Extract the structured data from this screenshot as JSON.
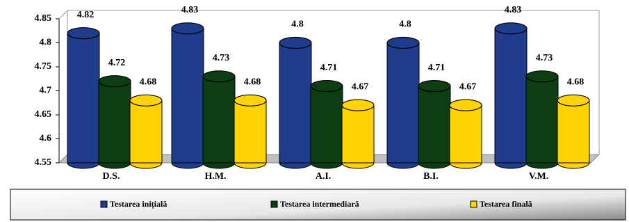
{
  "chart_data": {
    "type": "bar",
    "categories": [
      "D.S.",
      "H.M.",
      "A.I.",
      "B.I.",
      "V.M."
    ],
    "series": [
      {
        "name": "Testarea inițială",
        "color": "#1f3d8c",
        "values": [
          4.82,
          4.83,
          4.8,
          4.8,
          4.83
        ]
      },
      {
        "name": "Testarea intermediară",
        "color": "#0d3d12",
        "values": [
          4.72,
          4.73,
          4.71,
          4.71,
          4.73
        ]
      },
      {
        "name": "Testarea finală",
        "color": "#ffd400",
        "values": [
          4.68,
          4.68,
          4.67,
          4.67,
          4.68
        ]
      }
    ],
    "ylim": [
      4.55,
      4.85
    ],
    "yticks": [
      4.55,
      4.6,
      4.65,
      4.7,
      4.75,
      4.8,
      4.85
    ],
    "legend": "bottom"
  }
}
